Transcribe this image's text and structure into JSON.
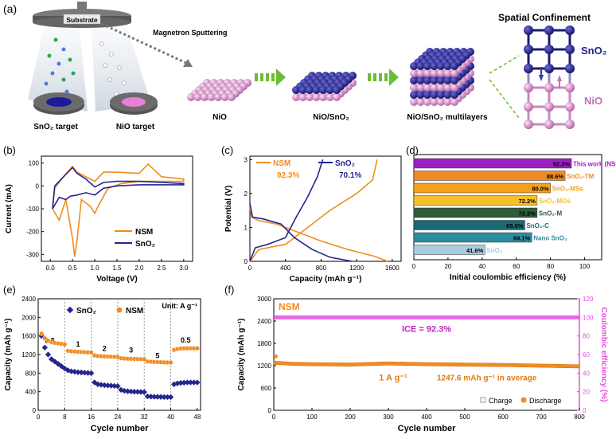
{
  "panel_a": {
    "label": "(a)",
    "substrate": "Substrate",
    "process": "Magnetron Sputtering",
    "target_sno2": "SnO₂ target",
    "target_nio": "NiO  target",
    "stage1": "NiO",
    "stage2": "NiO/SnO₂",
    "stage3": "NiO/SnO₂ multilayers",
    "confinement_title": "Spatial Confinement",
    "conf_top": "SnO₂",
    "conf_bottom": "NiO",
    "colors": {
      "nio": "#d889cc",
      "sno2": "#23238a",
      "arrow": "#6bbd34"
    }
  },
  "chart_data": [
    {
      "panel": "(b)",
      "type": "line",
      "xlabel": "Voltage (V)",
      "ylabel": "Current (mA)",
      "xlim": [
        -0.2,
        3.2
      ],
      "ylim": [
        -330,
        130
      ],
      "xticks": [
        "0.0",
        "0.5",
        "1.0",
        "1.5",
        "2.0",
        "2.5",
        "3.0"
      ],
      "yticks": [
        "100",
        "0",
        "-100",
        "-200",
        "-300"
      ],
      "legend": [
        "NSM",
        "SnO₂"
      ],
      "series": [
        {
          "name": "NSM",
          "color": "#f28c1e",
          "x": [
            0.05,
            0.2,
            0.35,
            0.5,
            0.55,
            0.6,
            0.7,
            0.9,
            1.0,
            1.1,
            1.3,
            1.6,
            2.0,
            2.5,
            3.0,
            3.0,
            2.5,
            2.2,
            2.0,
            1.5,
            1.2,
            1.0,
            0.8,
            0.6,
            0.5,
            0.3,
            0.1,
            0.05
          ],
          "y": [
            -100,
            -150,
            -60,
            -230,
            -310,
            -240,
            -60,
            -90,
            -120,
            -80,
            -10,
            10,
            20,
            20,
            20,
            30,
            40,
            95,
            55,
            60,
            60,
            20,
            40,
            60,
            85,
            40,
            -10,
            -100
          ]
        },
        {
          "name": "SnO₂",
          "color": "#22268e",
          "x": [
            0.05,
            0.2,
            0.35,
            0.45,
            0.6,
            0.8,
            1.0,
            1.2,
            1.5,
            2.0,
            2.5,
            3.0,
            3.0,
            2.5,
            2.0,
            1.5,
            1.2,
            1.0,
            0.8,
            0.6,
            0.5,
            0.3,
            0.1,
            0.05
          ],
          "y": [
            -100,
            -50,
            -60,
            -45,
            -40,
            -30,
            -40,
            -10,
            0,
            5,
            5,
            5,
            10,
            15,
            20,
            20,
            15,
            -5,
            30,
            55,
            80,
            40,
            0,
            -100
          ]
        }
      ]
    },
    {
      "panel": "(c)",
      "type": "line",
      "xlabel": "Capacity (mAh g⁻¹)",
      "ylabel": "Potential (V)",
      "xlim": [
        0,
        1700
      ],
      "ylim": [
        0,
        3.1
      ],
      "xticks": [
        "0",
        "400",
        "800",
        "1200",
        "1600"
      ],
      "yticks": [
        "0",
        "1",
        "2",
        "3"
      ],
      "legend": [
        "NSM",
        "SnO₂"
      ],
      "annotations": [
        "92.3%",
        "70.1%"
      ],
      "series": [
        {
          "name": "NSM discharge",
          "color": "#f28c1e",
          "x": [
            0,
            20,
            100,
            300,
            500,
            800,
            1100,
            1400,
            1550
          ],
          "y": [
            1.6,
            1.3,
            1.2,
            1.1,
            0.9,
            0.6,
            0.35,
            0.15,
            0.0
          ]
        },
        {
          "name": "NSM charge",
          "color": "#f28c1e",
          "x": [
            0,
            100,
            400,
            600,
            900,
            1200,
            1380,
            1430
          ],
          "y": [
            0.0,
            0.35,
            0.5,
            0.9,
            1.5,
            2.0,
            2.4,
            3.0
          ]
        },
        {
          "name": "SnO₂ discharge",
          "color": "#22268e",
          "x": [
            0,
            30,
            150,
            350,
            500,
            700,
            900,
            1150
          ],
          "y": [
            1.7,
            1.3,
            1.25,
            1.1,
            0.7,
            0.35,
            0.12,
            0.0
          ]
        },
        {
          "name": "SnO₂ charge",
          "color": "#22268e",
          "x": [
            0,
            60,
            200,
            400,
            520,
            650,
            760,
            820
          ],
          "y": [
            0.0,
            0.4,
            0.5,
            0.7,
            1.3,
            1.9,
            2.5,
            3.0
          ]
        }
      ]
    },
    {
      "panel": "(d)",
      "type": "bar",
      "xlabel": "Initial coulombic efficiency (%)",
      "xlim": [
        0,
        110
      ],
      "xticks": [
        "0",
        "20",
        "40",
        "60",
        "80",
        "100"
      ],
      "categories": [
        "This work (NSM)",
        "SnO₂-TM",
        "SnO₂-MSs",
        "SnO₂-MOs",
        "SnO₂-M",
        "SnO₂-C",
        "Nano SnO₂",
        "SnO₂"
      ],
      "values": [
        92.3,
        88.6,
        80.0,
        72.2,
        72.2,
        65.0,
        69.1,
        41.6
      ],
      "value_labels": [
        "92.3%",
        "88.6%",
        "80.0%",
        "72.2%",
        "72.2%",
        "65.0%",
        "69.1%",
        "41.6%"
      ],
      "colors": [
        "#9b1fc2",
        "#f08a24",
        "#f4a01a",
        "#f5c02c",
        "#2f5a3c",
        "#1e6a74",
        "#2a8da0",
        "#a9cce0"
      ],
      "label_colors": [
        "#9b1fc2",
        "#f08a24",
        "#f4a01a",
        "#f5c02c",
        "#2f5a3c",
        "#1e6a74",
        "#2a8da0",
        "#a9cce0"
      ]
    },
    {
      "panel": "(e)",
      "type": "scatter",
      "xlabel": "Cycle number",
      "ylabel": "Capacity (mAh g⁻¹)",
      "xlim": [
        0,
        49
      ],
      "ylim": [
        0,
        2400
      ],
      "xticks": [
        "0",
        "8",
        "16",
        "24",
        "32",
        "40",
        "48"
      ],
      "yticks": [
        "0",
        "400",
        "800",
        "1200",
        "1600",
        "2000",
        "2400"
      ],
      "unit_note": "Unit: A g⁻¹",
      "rate_labels": [
        "0.5",
        "1",
        "2",
        "3",
        "5",
        "0.5"
      ],
      "legend": [
        "SnO₂",
        "NSM"
      ],
      "series": [
        {
          "name": "SnO₂",
          "color": "#22268e",
          "values": [
            1600,
            1350,
            1200,
            1100,
            1050,
            1000,
            950,
            900,
            860,
            840,
            830,
            820,
            815,
            810,
            805,
            800,
            600,
            560,
            550,
            540,
            535,
            530,
            525,
            520,
            440,
            420,
            410,
            405,
            400,
            398,
            395,
            392,
            300,
            295,
            292,
            290,
            288,
            286,
            285,
            284,
            560,
            580,
            590,
            595,
            600,
            600,
            600,
            600
          ]
        },
        {
          "name": "NSM",
          "color": "#f28c1e",
          "values": [
            1650,
            1550,
            1500,
            1470,
            1450,
            1440,
            1430,
            1420,
            1280,
            1270,
            1265,
            1260,
            1255,
            1250,
            1248,
            1245,
            1180,
            1170,
            1165,
            1160,
            1158,
            1155,
            1150,
            1148,
            1120,
            1115,
            1110,
            1108,
            1105,
            1102,
            1100,
            1098,
            1050,
            1045,
            1040,
            1038,
            1035,
            1033,
            1030,
            1028,
            1300,
            1320,
            1330,
            1335,
            1335,
            1335,
            1335,
            1335
          ]
        }
      ]
    },
    {
      "panel": "(f)",
      "type": "scatter",
      "xlabel": "Cycle number",
      "ylabel": "Capacity (mAh g⁻¹)",
      "y2label": "Coulombic efficiency (%)",
      "xlim": [
        0,
        800
      ],
      "ylim": [
        0,
        3000
      ],
      "y2lim": [
        0,
        120
      ],
      "xticks": [
        "0",
        "100",
        "200",
        "300",
        "400",
        "500",
        "600",
        "700",
        "800"
      ],
      "yticks": [
        "0",
        "600",
        "1200",
        "1800",
        "2400",
        "3000"
      ],
      "y2ticks": [
        "0",
        "20",
        "40",
        "60",
        "80",
        "100",
        "120"
      ],
      "series_label": "NSM",
      "ice_text": "ICE = 92.3%",
      "rate_text": "1 A g⁻¹",
      "avg_text": "1247.6 mAh g⁻¹  in  average",
      "legend": [
        "Charge",
        "Discharge"
      ],
      "capacity": {
        "x": [
          0,
          50,
          100,
          200,
          300,
          400,
          500,
          600,
          700,
          800
        ],
        "y": [
          1280,
          1250,
          1240,
          1230,
          1260,
          1240,
          1230,
          1220,
          1200,
          1180
        ]
      },
      "efficiency": {
        "x": [
          0,
          800
        ],
        "y": [
          100,
          100
        ]
      },
      "colors": {
        "capacity": "#f28c1e",
        "efficiency": "#e64ee0"
      }
    }
  ]
}
